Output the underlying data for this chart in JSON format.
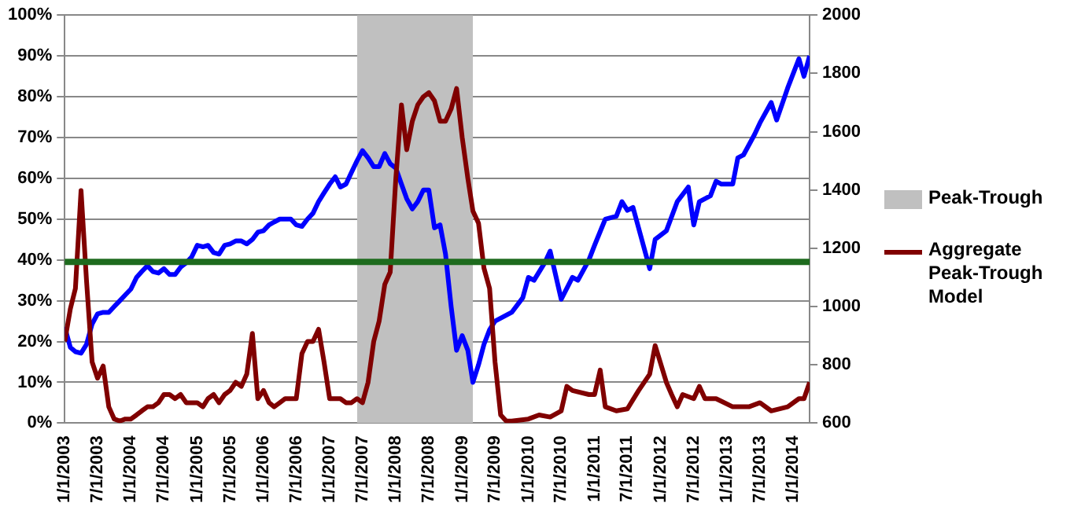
{
  "chart_data": {
    "type": "line",
    "legend": "right",
    "grid": "y",
    "marker": "none",
    "line_style": "solid",
    "xlim": [
      "2003-01",
      "2014-04"
    ],
    "xticks": [
      {
        "value": "2003-01-01",
        "label": "1/1/2003"
      },
      {
        "value": "2003-07-01",
        "label": "7/1/2003"
      },
      {
        "value": "2004-01-01",
        "label": "1/1/2004"
      },
      {
        "value": "2004-07-01",
        "label": "7/1/2004"
      },
      {
        "value": "2005-01-01",
        "label": "1/1/2005"
      },
      {
        "value": "2005-07-01",
        "label": "7/1/2005"
      },
      {
        "value": "2006-01-01",
        "label": "1/1/2006"
      },
      {
        "value": "2006-07-01",
        "label": "7/1/2006"
      },
      {
        "value": "2007-01-01",
        "label": "1/1/2007"
      },
      {
        "value": "2007-07-01",
        "label": "7/1/2007"
      },
      {
        "value": "2008-01-01",
        "label": "1/1/2008"
      },
      {
        "value": "2008-07-01",
        "label": "7/1/2008"
      },
      {
        "value": "2009-01-01",
        "label": "1/1/2009"
      },
      {
        "value": "2009-07-01",
        "label": "7/1/2009"
      },
      {
        "value": "2010-01-01",
        "label": "1/1/2010"
      },
      {
        "value": "2010-07-01",
        "label": "7/1/2010"
      },
      {
        "value": "2011-01-01",
        "label": "1/1/2011"
      },
      {
        "value": "2011-07-01",
        "label": "7/1/2011"
      },
      {
        "value": "2012-01-01",
        "label": "1/1/2012"
      },
      {
        "value": "2012-07-01",
        "label": "7/1/2012"
      },
      {
        "value": "2013-01-01",
        "label": "1/1/2013"
      },
      {
        "value": "2013-07-01",
        "label": "7/1/2013"
      },
      {
        "value": "2014-01-01",
        "label": "1/1/2014"
      }
    ],
    "ylim": [
      0,
      100
    ],
    "yticks": [
      {
        "value": 0,
        "label": "0%"
      },
      {
        "value": 10,
        "label": "10%"
      },
      {
        "value": 20,
        "label": "20%"
      },
      {
        "value": 30,
        "label": "30%"
      },
      {
        "value": 40,
        "label": "40%"
      },
      {
        "value": 50,
        "label": "50%"
      },
      {
        "value": 60,
        "label": "60%"
      },
      {
        "value": 70,
        "label": "70%"
      },
      {
        "value": 80,
        "label": "80%"
      },
      {
        "value": 90,
        "label": "90%"
      },
      {
        "value": 100,
        "label": "100%"
      }
    ],
    "y2lim": [
      600,
      2000
    ],
    "y2ticks": [
      600,
      800,
      1000,
      1200,
      1400,
      1600,
      1800,
      2000
    ],
    "ref_lines": [
      {
        "axis": "y",
        "value": 39.5,
        "color": "#1e6b1e"
      }
    ],
    "series": [
      {
        "name": "Peak-Trough",
        "type": "area",
        "color": "#c0c0c0",
        "x": [
          "2007-06",
          "2009-03"
        ],
        "values": [
          100,
          100
        ]
      },
      {
        "name": "Aggregate Peak-Trough Model",
        "color": "#800000",
        "x": [
          "2003-01",
          "2003-02",
          "2003-03",
          "2003-04",
          "2003-05",
          "2003-06",
          "2003-07",
          "2003-08",
          "2003-09",
          "2003-10",
          "2003-11",
          "2003-12",
          "2004-01",
          "2004-02",
          "2004-03",
          "2004-04",
          "2004-05",
          "2004-06",
          "2004-07",
          "2004-08",
          "2004-09",
          "2004-10",
          "2004-11",
          "2004-12",
          "2005-01",
          "2005-02",
          "2005-03",
          "2005-04",
          "2005-05",
          "2005-06",
          "2005-07",
          "2005-08",
          "2005-09",
          "2005-10",
          "2005-11",
          "2005-12",
          "2006-01",
          "2006-02",
          "2006-03",
          "2006-04",
          "2006-05",
          "2006-06",
          "2006-07",
          "2006-08",
          "2006-09",
          "2006-10",
          "2006-11",
          "2006-12",
          "2007-01",
          "2007-02",
          "2007-03",
          "2007-04",
          "2007-05",
          "2007-06",
          "2007-07",
          "2007-08",
          "2007-09",
          "2007-10",
          "2007-11",
          "2007-12",
          "2008-01",
          "2008-02",
          "2008-03",
          "2008-04",
          "2008-05",
          "2008-06",
          "2008-07",
          "2008-08",
          "2008-09",
          "2008-10",
          "2008-11",
          "2008-12",
          "2009-01",
          "2009-02",
          "2009-03",
          "2009-04",
          "2009-05",
          "2009-06",
          "2009-07",
          "2009-08",
          "2009-09",
          "2009-10",
          "2010-01",
          "2010-03",
          "2010-05",
          "2010-07",
          "2010-08",
          "2010-09",
          "2010-12",
          "2011-01",
          "2011-02",
          "2011-03",
          "2011-05",
          "2011-07",
          "2011-09",
          "2011-11",
          "2011-12",
          "2012-02",
          "2012-03",
          "2012-04",
          "2012-05",
          "2012-07",
          "2012-08",
          "2012-09",
          "2012-11",
          "2013-02",
          "2013-05",
          "2013-07",
          "2013-09",
          "2013-12",
          "2014-02",
          "2014-03",
          "2014-04"
        ],
        "values": [
          20,
          28,
          33,
          57,
          35,
          15,
          11,
          14,
          4,
          1,
          0.5,
          1,
          1,
          2,
          3,
          4,
          4,
          5,
          7,
          7,
          6,
          7,
          5,
          5,
          5,
          4,
          6,
          7,
          5,
          7,
          8,
          10,
          9,
          12,
          22,
          6,
          8,
          5,
          4,
          5,
          6,
          6,
          6,
          17,
          20,
          20,
          23,
          15,
          6,
          6,
          6,
          5,
          5,
          6,
          5,
          10,
          20,
          25,
          34,
          37,
          60,
          78,
          67,
          74,
          78,
          80,
          81,
          79,
          74,
          74,
          77,
          82,
          70,
          60,
          52,
          49,
          38,
          33,
          15,
          2,
          0.5,
          0.5,
          1,
          2,
          1.5,
          3,
          9,
          8,
          7,
          7,
          13,
          4,
          3,
          3.5,
          8,
          12,
          19,
          10,
          7,
          4,
          7,
          6,
          9,
          6,
          6,
          4,
          4,
          5,
          3,
          4,
          6,
          6,
          10
        ]
      },
      {
        "color": "#0000ff",
        "axis": "y2",
        "x": [
          "2003-01",
          "2003-02",
          "2003-03",
          "2003-04",
          "2003-05",
          "2003-06",
          "2003-07",
          "2003-08",
          "2003-09",
          "2003-10",
          "2003-11",
          "2003-12",
          "2004-01",
          "2004-02",
          "2004-03",
          "2004-04",
          "2004-05",
          "2004-06",
          "2004-07",
          "2004-08",
          "2004-09",
          "2004-10",
          "2004-11",
          "2004-12",
          "2005-01",
          "2005-02",
          "2005-03",
          "2005-04",
          "2005-05",
          "2005-06",
          "2005-07",
          "2005-08",
          "2005-09",
          "2005-10",
          "2005-11",
          "2005-12",
          "2006-01",
          "2006-02",
          "2006-03",
          "2006-04",
          "2006-05",
          "2006-06",
          "2006-07",
          "2006-08",
          "2006-09",
          "2006-10",
          "2006-11",
          "2006-12",
          "2007-01",
          "2007-02",
          "2007-03",
          "2007-04",
          "2007-05",
          "2007-06",
          "2007-07",
          "2007-08",
          "2007-09",
          "2007-10",
          "2007-11",
          "2007-12",
          "2008-01",
          "2008-02",
          "2008-03",
          "2008-04",
          "2008-05",
          "2008-06",
          "2008-07",
          "2008-08",
          "2008-09",
          "2008-10",
          "2008-11",
          "2008-12",
          "2009-01",
          "2009-02",
          "2009-03",
          "2009-04",
          "2009-05",
          "2009-06",
          "2009-07",
          "2009-10",
          "2009-12",
          "2010-01",
          "2010-02",
          "2010-04",
          "2010-05",
          "2010-07",
          "2010-09",
          "2010-10",
          "2010-12",
          "2011-01",
          "2011-03",
          "2011-05",
          "2011-06",
          "2011-07",
          "2011-08",
          "2011-11",
          "2011-12",
          "2012-02",
          "2012-04",
          "2012-06",
          "2012-07",
          "2012-08",
          "2012-10",
          "2012-11",
          "2012-12",
          "2013-02",
          "2013-03",
          "2013-04",
          "2013-06",
          "2013-07",
          "2013-09",
          "2013-10",
          "2013-12",
          "2014-02",
          "2014-03",
          "2014-04"
        ],
        "values": [
          930,
          860,
          845,
          840,
          870,
          940,
          975,
          980,
          980,
          1000,
          1020,
          1040,
          1060,
          1100,
          1120,
          1140,
          1120,
          1115,
          1130,
          1110,
          1110,
          1135,
          1150,
          1170,
          1210,
          1205,
          1210,
          1185,
          1180,
          1210,
          1215,
          1225,
          1225,
          1215,
          1230,
          1255,
          1260,
          1280,
          1290,
          1300,
          1300,
          1300,
          1280,
          1275,
          1300,
          1320,
          1360,
          1390,
          1420,
          1445,
          1410,
          1420,
          1460,
          1500,
          1535,
          1510,
          1480,
          1480,
          1525,
          1490,
          1475,
          1420,
          1370,
          1335,
          1360,
          1400,
          1400,
          1270,
          1280,
          1180,
          1000,
          850,
          900,
          850,
          740,
          800,
          870,
          920,
          950,
          980,
          1030,
          1100,
          1090,
          1150,
          1190,
          1025,
          1100,
          1090,
          1160,
          1210,
          1300,
          1310,
          1360,
          1330,
          1340,
          1130,
          1230,
          1260,
          1360,
          1410,
          1280,
          1360,
          1380,
          1430,
          1420,
          1420,
          1510,
          1520,
          1590,
          1630,
          1700,
          1640,
          1750,
          1850,
          1790,
          1860
        ]
      }
    ]
  }
}
